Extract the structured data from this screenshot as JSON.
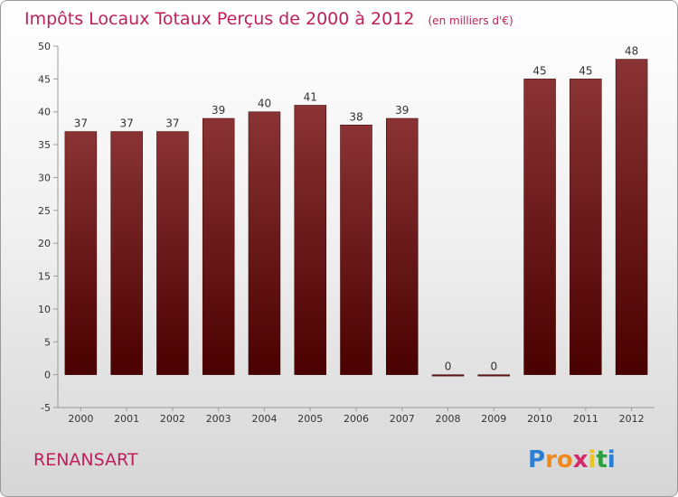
{
  "chart_data": {
    "type": "bar",
    "title": "Impôts Locaux Totaux Perçus de 2000 à 2012",
    "subtitle": "(en milliers d'€)",
    "categories": [
      "2000",
      "2001",
      "2002",
      "2003",
      "2004",
      "2005",
      "2006",
      "2007",
      "2008",
      "2009",
      "2010",
      "2011",
      "2012"
    ],
    "values": [
      37,
      37,
      37,
      39,
      40,
      41,
      38,
      39,
      0,
      0,
      45,
      45,
      48
    ],
    "ylim": [
      -5,
      50
    ],
    "yticks": [
      -5,
      0,
      5,
      10,
      15,
      20,
      25,
      30,
      35,
      40,
      45,
      50
    ],
    "grid": false,
    "xlabel": "",
    "ylabel": "",
    "colors": {
      "bar_top": "#8a3334",
      "bar_bottom": "#4a0000",
      "text": "#c0205a"
    }
  },
  "footer": {
    "place": "RENANSART",
    "logo": "Proxiti"
  }
}
